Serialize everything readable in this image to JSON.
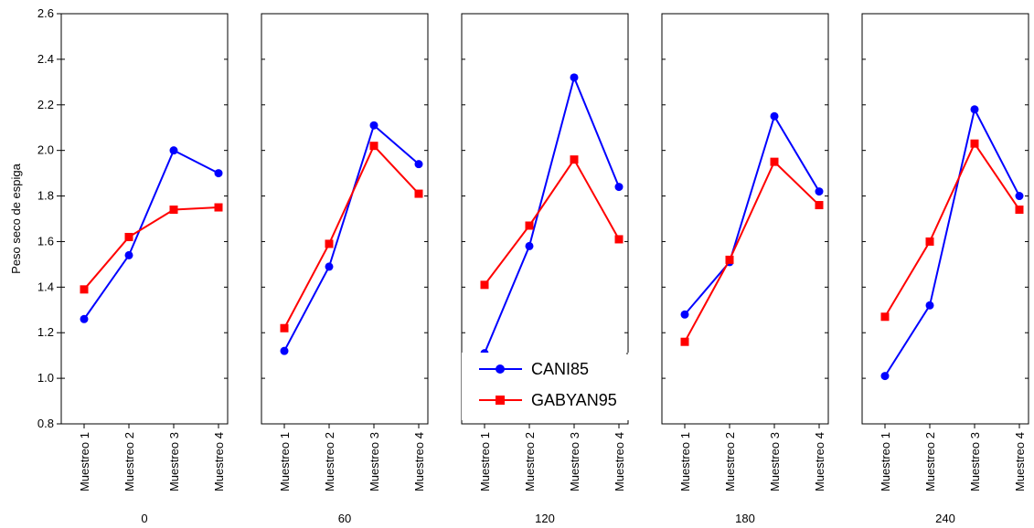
{
  "chart_data": {
    "type": "line",
    "ylabel": "Peso seco de espiga",
    "ylim": [
      0.8,
      2.6
    ],
    "yticks": [
      0.8,
      1.0,
      1.2,
      1.4,
      1.6,
      1.8,
      2.0,
      2.2,
      2.4,
      2.6
    ],
    "ytick_labels": [
      "0.8",
      "1.0",
      "1.2",
      "1.4",
      "1.6",
      "1.8",
      "2.0",
      "2.2",
      "2.4",
      "2.6"
    ],
    "categories": [
      "Muestreo 1",
      "Muestreo 2",
      "Muestreo 3",
      "Muestreo 4"
    ],
    "grid": false,
    "legend_position": "bottom-center",
    "legend": [
      {
        "name": "CANI85",
        "color": "#0000ff",
        "marker": "circle"
      },
      {
        "name": "GABYAN95",
        "color": "#ff0000",
        "marker": "square"
      }
    ],
    "panels": [
      {
        "label": "0",
        "series": [
          {
            "name": "CANI85",
            "values": [
              1.26,
              1.54,
              2.0,
              1.9
            ]
          },
          {
            "name": "GABYAN95",
            "values": [
              1.39,
              1.62,
              1.74,
              1.75
            ]
          }
        ]
      },
      {
        "label": "60",
        "series": [
          {
            "name": "CANI85",
            "values": [
              1.12,
              1.49,
              2.11,
              1.94
            ]
          },
          {
            "name": "GABYAN95",
            "values": [
              1.22,
              1.59,
              2.02,
              1.81
            ]
          }
        ]
      },
      {
        "label": "120",
        "series": [
          {
            "name": "CANI85",
            "values": [
              1.11,
              1.58,
              2.32,
              1.84
            ]
          },
          {
            "name": "GABYAN95",
            "values": [
              1.41,
              1.67,
              1.96,
              1.61
            ]
          }
        ]
      },
      {
        "label": "180",
        "series": [
          {
            "name": "CANI85",
            "values": [
              1.28,
              1.51,
              2.15,
              1.82
            ]
          },
          {
            "name": "GABYAN95",
            "values": [
              1.16,
              1.52,
              1.95,
              1.76
            ]
          }
        ]
      },
      {
        "label": "240",
        "series": [
          {
            "name": "CANI85",
            "values": [
              1.01,
              1.32,
              2.18,
              1.8
            ]
          },
          {
            "name": "GABYAN95",
            "values": [
              1.27,
              1.6,
              2.03,
              1.74
            ]
          }
        ]
      }
    ]
  }
}
